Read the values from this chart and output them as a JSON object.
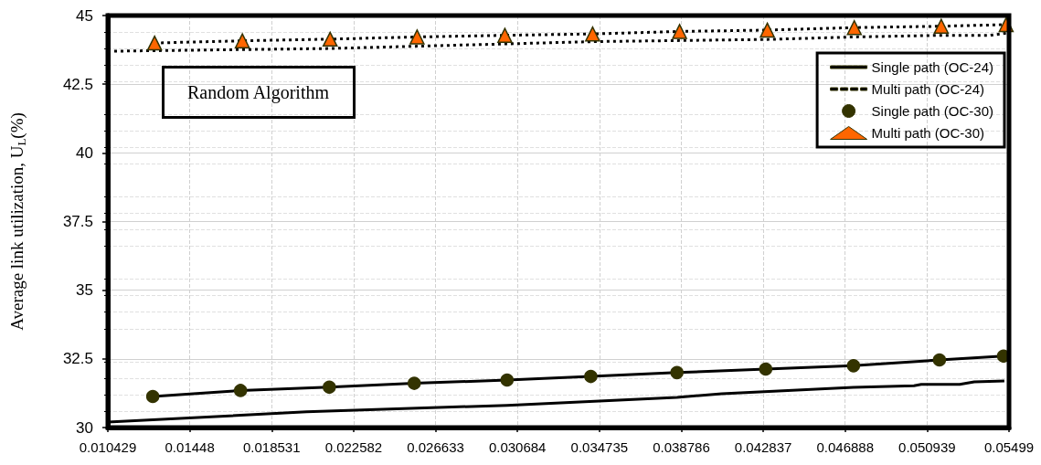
{
  "chart_data": {
    "type": "line",
    "ylabel": "Average link utilization, U$_{L}$(%)",
    "annotations": [
      "Random Algorithm"
    ],
    "xlim": [
      0.010429,
      0.05499
    ],
    "xticks": [
      0.010429,
      0.01448,
      0.018531,
      0.022582,
      0.026633,
      0.030684,
      0.034735,
      0.038786,
      0.042837,
      0.046888,
      0.050939,
      0.05499
    ],
    "ylim": [
      30,
      45
    ],
    "yticks": [
      30,
      32.5,
      35,
      37.5,
      40,
      42.5,
      45
    ],
    "grid": true,
    "legend": "top right",
    "series": [
      {
        "name": "Single path (OC-24)",
        "color": "#000000",
        "marker": "none",
        "line_style": "solid",
        "x": [
          0.010429,
          0.02025,
          0.03017,
          0.03857,
          0.04079,
          0.0473,
          0.05029,
          0.05065,
          0.05255,
          0.05327,
          0.05476
        ],
        "values": [
          30.2,
          30.57,
          30.81,
          31.1,
          31.23,
          31.46,
          31.52,
          31.57,
          31.57,
          31.66,
          31.7
        ]
      },
      {
        "name": "Multi path (OC-24)",
        "color": "#000000",
        "marker": "none",
        "line_style": "dashed",
        "x": [
          0.010429,
          0.02142,
          0.0344,
          0.04304,
          0.04734,
          0.05164,
          0.05406,
          0.05499
        ],
        "values": [
          43.7,
          43.8,
          44.05,
          44.13,
          44.22,
          44.28,
          44.28,
          44.37
        ]
      },
      {
        "name": "Single path (OC-30)",
        "color": "#333300",
        "marker": "circle",
        "line_style": "solid",
        "x": [
          0.01265,
          0.01699,
          0.02138,
          0.02558,
          0.03017,
          0.03431,
          0.03857,
          0.04296,
          0.0473,
          0.05155,
          0.05472
        ],
        "values": [
          31.13,
          31.35,
          31.47,
          31.61,
          31.73,
          31.86,
          32.0,
          32.13,
          32.25,
          32.46,
          32.6
        ]
      },
      {
        "name": "Multi path (OC-30)",
        "color": "#ff6600",
        "marker": "triangle",
        "line_style": "dashed",
        "x": [
          0.01274,
          0.01708,
          0.02142,
          0.02572,
          0.03006,
          0.0344,
          0.0387,
          0.04304,
          0.04734,
          0.05164,
          0.05485
        ],
        "values": [
          44.0,
          44.08,
          44.14,
          44.22,
          44.28,
          44.33,
          44.42,
          44.47,
          44.56,
          44.61,
          44.67
        ]
      }
    ]
  }
}
